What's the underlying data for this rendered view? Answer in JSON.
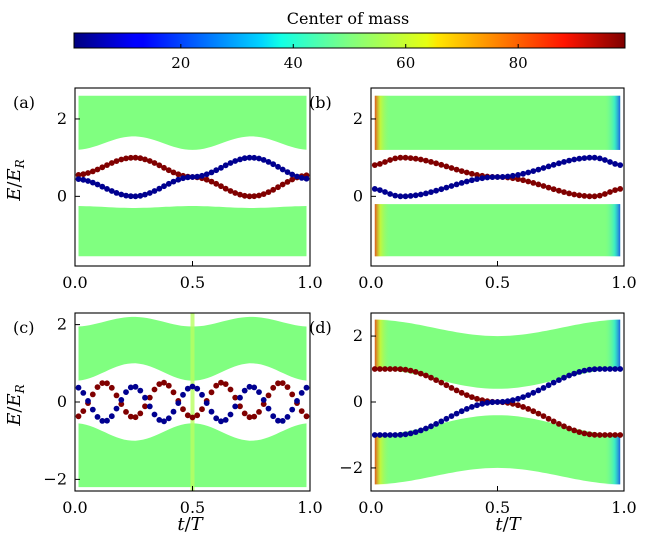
{
  "colorbar": {
    "label": "Center of mass",
    "range": [
      1,
      99
    ],
    "ticks": [
      20,
      40,
      60,
      80
    ],
    "colormap": "jet"
  },
  "axis_labels": {
    "ylabel": "E/E_R",
    "xlabel": "t/T"
  },
  "colors": {
    "bulk": "#80ff80",
    "left_edge_state": "#000090",
    "right_edge_state": "#800000"
  },
  "chart_data": [
    {
      "panel": "(a)",
      "type": "scatter",
      "xlim": [
        0,
        1
      ],
      "ylim": [
        -1.8,
        2.8
      ],
      "xticks": [
        0.0,
        0.5,
        1.0
      ],
      "yticks": [
        0,
        2
      ],
      "xticklabels": [
        "0.0",
        "0.5",
        "1.0"
      ],
      "yticklabels": [
        "0",
        "2"
      ],
      "ylabel": "E/E_R",
      "xlabel": "",
      "bulk_bands": [
        {
          "top": {
            "x": [
              0,
              0.25,
              0.5,
              0.75,
              1
            ],
            "y": [
              -0.25,
              -0.3,
              -0.25,
              -0.3,
              -0.25
            ]
          },
          "bottom": -1.55
        },
        {
          "top": 2.6,
          "bottom": {
            "x": [
              0,
              0.25,
              0.5,
              0.75,
              1
            ],
            "y": [
              1.2,
              1.55,
              1.2,
              1.55,
              1.2
            ]
          }
        }
      ],
      "edge_states": [
        {
          "center_of_mass": 99,
          "x": [
            0,
            0.25,
            0.5,
            0.75,
            1
          ],
          "y": [
            0.55,
            1.0,
            0.5,
            0.0,
            0.55
          ]
        },
        {
          "center_of_mass": 1,
          "x": [
            0,
            0.25,
            0.5,
            0.75,
            1
          ],
          "y": [
            0.45,
            0.0,
            0.5,
            1.0,
            0.45
          ]
        }
      ]
    },
    {
      "panel": "(b)",
      "type": "scatter",
      "xlim": [
        0,
        1
      ],
      "ylim": [
        -1.8,
        2.8
      ],
      "xticks": [
        0.0,
        0.5,
        1.0
      ],
      "yticks": [
        0,
        2
      ],
      "xticklabels": [
        "0.0",
        "0.5",
        "1.0"
      ],
      "yticklabels": [
        "0",
        "2"
      ],
      "ylabel": "",
      "xlabel": "",
      "bulk_bands": [
        {
          "top": -0.2,
          "bottom": -1.55
        },
        {
          "top": 2.6,
          "bottom": 1.2
        }
      ],
      "edge_states": [
        {
          "center_of_mass": 99,
          "x": [
            0,
            0.12,
            0.5,
            0.88,
            1
          ],
          "y": [
            0.8,
            1.0,
            0.5,
            0.0,
            0.2
          ]
        },
        {
          "center_of_mass": 1,
          "x": [
            0,
            0.12,
            0.5,
            0.88,
            1
          ],
          "y": [
            0.2,
            0.0,
            0.5,
            1.0,
            0.8
          ]
        }
      ]
    },
    {
      "panel": "(c)",
      "type": "scatter",
      "xlim": [
        0,
        1
      ],
      "ylim": [
        -2.3,
        2.3
      ],
      "xticks": [
        0.0,
        0.5,
        1.0
      ],
      "yticks": [
        -2,
        0,
        2
      ],
      "xticklabels": [
        "0.0",
        "0.5",
        "1.0"
      ],
      "yticklabels": [
        "−2",
        "0",
        "2"
      ],
      "ylabel": "E/E_R",
      "xlabel": "t/T",
      "bulk_bands": [
        {
          "top": {
            "x": [
              0,
              0.25,
              0.5,
              0.75,
              1
            ],
            "y": [
              -0.55,
              -1.0,
              -0.55,
              -1.0,
              -0.55
            ]
          },
          "bottom": -2.2
        },
        {
          "top": {
            "x": [
              0,
              0.25,
              0.5,
              0.75,
              1
            ],
            "y": [
              1.95,
              2.2,
              1.95,
              2.2,
              1.95
            ]
          },
          "bottom": {
            "x": [
              0,
              0.25,
              0.5,
              0.75,
              1
            ],
            "y": [
              0.55,
              1.0,
              0.55,
              1.0,
              0.55
            ]
          }
        }
      ],
      "edge_states": [
        {
          "center_of_mass": 99,
          "x": [
            0,
            0.125,
            0.25,
            0.375,
            0.5,
            0.625,
            0.75,
            0.875,
            1
          ],
          "y": [
            -0.4,
            0.5,
            -0.4,
            0.5,
            -0.4,
            0.5,
            -0.4,
            0.5,
            -0.4
          ]
        },
        {
          "center_of_mass": 1,
          "x": [
            0,
            0.125,
            0.25,
            0.375,
            0.5,
            0.625,
            0.75,
            0.875,
            1
          ],
          "y": [
            0.4,
            -0.5,
            0.4,
            -0.5,
            0.4,
            -0.5,
            0.4,
            -0.5,
            0.4
          ]
        }
      ]
    },
    {
      "panel": "(d)",
      "type": "scatter",
      "xlim": [
        0,
        1
      ],
      "ylim": [
        -2.7,
        2.7
      ],
      "xticks": [
        0.0,
        0.5,
        1.0
      ],
      "yticks": [
        -2,
        0,
        2
      ],
      "xticklabels": [
        "0.0",
        "0.5",
        "1.0"
      ],
      "yticklabels": [
        "−2",
        "0",
        "2"
      ],
      "ylabel": "",
      "xlabel": "t/T",
      "bulk_bands": [
        {
          "top": {
            "x": [
              0,
              0.5,
              1
            ],
            "y": [
              -1.0,
              -0.4,
              -1.0
            ]
          },
          "bottom": {
            "x": [
              0,
              0.5,
              1
            ],
            "y": [
              -2.5,
              -2.0,
              -2.5
            ]
          }
        },
        {
          "top": {
            "x": [
              0,
              0.5,
              1
            ],
            "y": [
              2.5,
              2.0,
              2.5
            ]
          },
          "bottom": {
            "x": [
              0,
              0.5,
              1
            ],
            "y": [
              1.0,
              0.4,
              1.0
            ]
          }
        }
      ],
      "edge_states": [
        {
          "center_of_mass": 99,
          "x": [
            0,
            0.1,
            0.5,
            0.9,
            1
          ],
          "y": [
            1.0,
            1.0,
            0.0,
            -1.0,
            -1.0
          ]
        },
        {
          "center_of_mass": 1,
          "x": [
            0,
            0.1,
            0.5,
            0.9,
            1
          ],
          "y": [
            -1.0,
            -1.0,
            0.0,
            1.0,
            1.0
          ]
        }
      ]
    }
  ]
}
